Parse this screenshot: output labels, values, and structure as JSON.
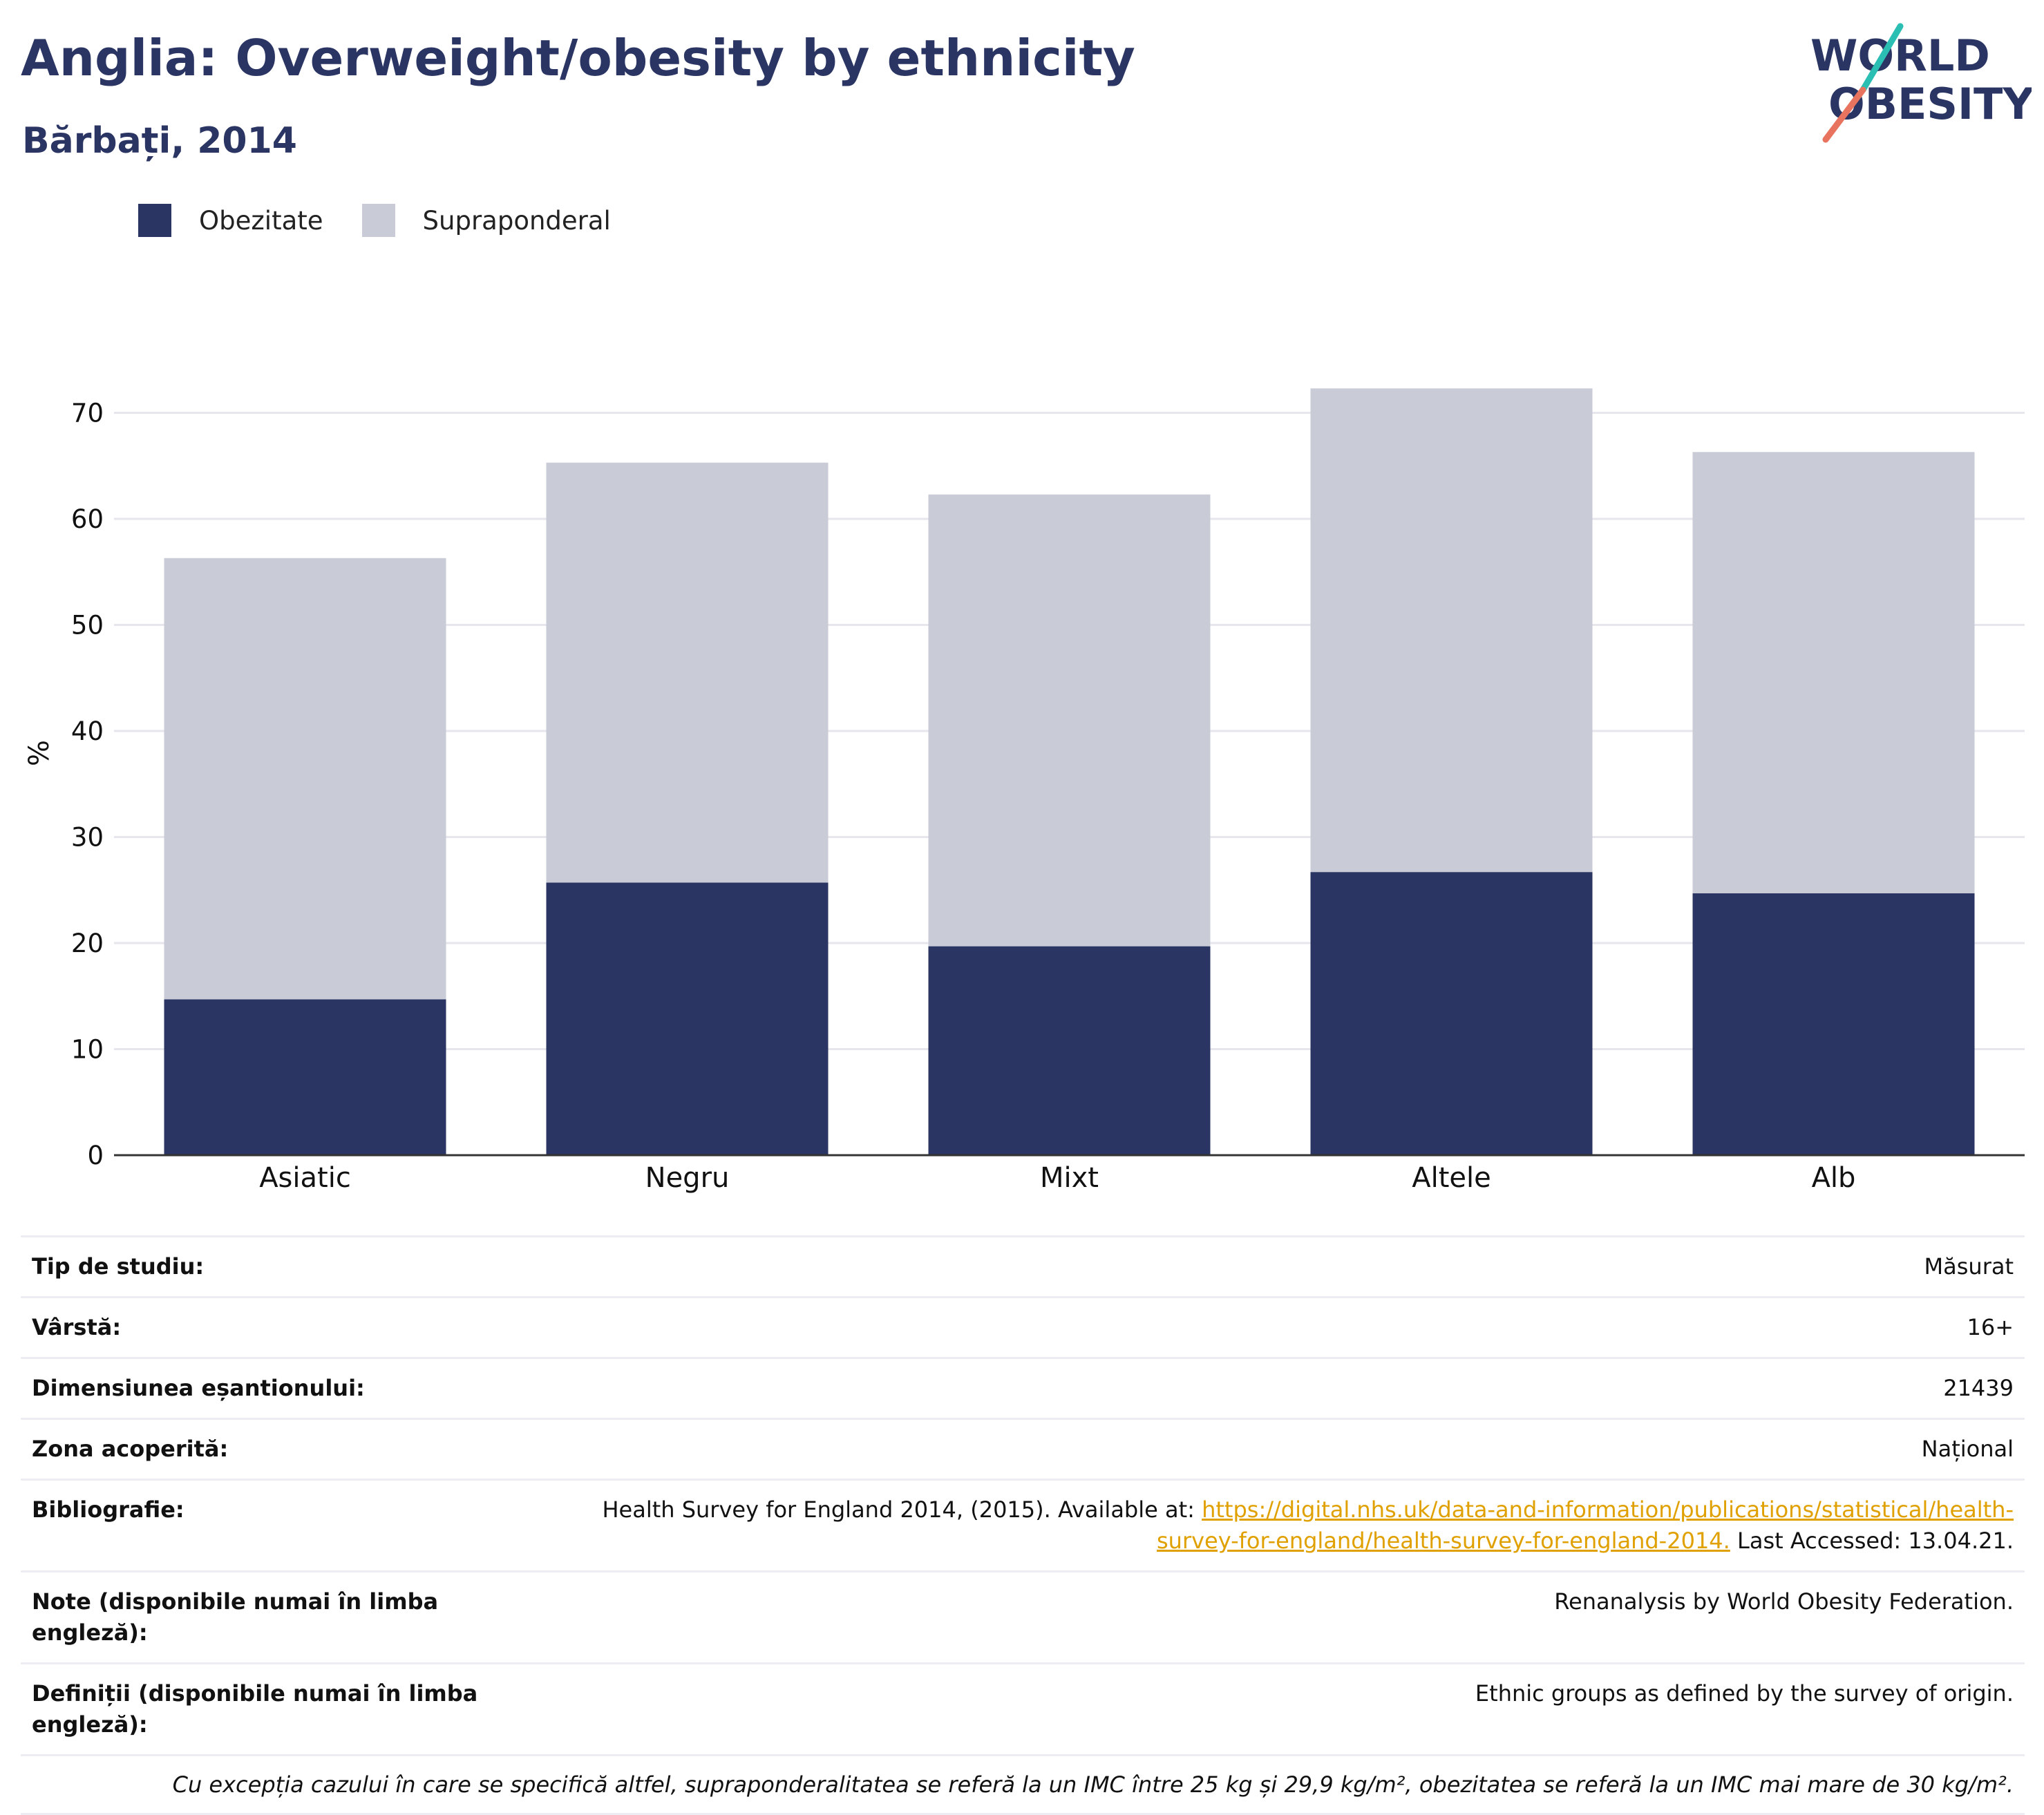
{
  "header": {
    "title": "Anglia: Overweight/obesity by ethnicity",
    "subtitle": "Bărbați, 2014",
    "logo": {
      "line1": "WORLD",
      "line2": "OBESITY"
    }
  },
  "colors": {
    "obesity": "#2b3563",
    "overweight": "#c9cbd7",
    "accent": "#e0a100",
    "logo_teal": "#2bbfb3",
    "logo_coral": "#e8735f"
  },
  "legend": [
    {
      "label": "Obezitate",
      "color": "#2b3563"
    },
    {
      "label": "Supraponderal",
      "color": "#c9cbd7"
    }
  ],
  "chart_data": {
    "type": "bar",
    "stacked": true,
    "categories": [
      "Asiatic",
      "Negru",
      "Mixt",
      "Altele",
      "Alb"
    ],
    "series": [
      {
        "name": "Obezitate",
        "values": [
          14.7,
          25.7,
          19.7,
          26.7,
          24.7
        ]
      },
      {
        "name": "Supraponderal",
        "values": [
          41.6,
          39.6,
          42.6,
          45.6,
          41.6
        ]
      }
    ],
    "ylabel": "%",
    "ylim": [
      0,
      75
    ],
    "yticks": [
      0,
      10,
      20,
      30,
      40,
      50,
      60,
      70
    ],
    "grid": true,
    "legend_position": "top-left"
  },
  "info": [
    {
      "label": "Tip de studiu:",
      "value": "Măsurat"
    },
    {
      "label": "Vârstă:",
      "value": "16+"
    },
    {
      "label": "Dimensiunea eșantionului:",
      "value": "21439"
    },
    {
      "label": "Zona acoperită:",
      "value": "Național"
    },
    {
      "label": "Bibliografie:",
      "value_prefix": "Health Survey for England 2014, (2015). Available at: ",
      "link": "https://digital.nhs.uk/data-and-information/publications/statistical/health-survey-for-england/health-survey-for-england-2014.",
      "value_suffix": " Last Accessed: 13.04.21."
    },
    {
      "label": "Note (disponibile numai în limba engleză):",
      "value": "Renanalysis by World Obesity Federation."
    },
    {
      "label": "Definiții (disponibile numai în limba engleză):",
      "value": "Ethnic groups as defined by the survey of origin."
    }
  ],
  "footnote": "Cu excepția cazului în care se specifică altfel, supraponderalitatea se referă la un IMC între 25 kg și 29,9 kg/m², obezitatea se referă la un IMC mai mare de 30 kg/m²."
}
